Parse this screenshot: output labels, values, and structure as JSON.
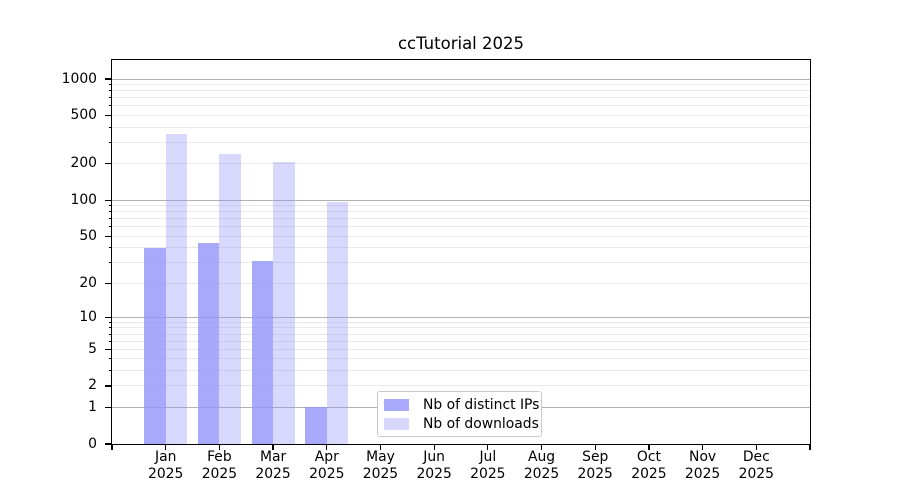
{
  "figure": {
    "title": "ccTutorial 2025"
  },
  "chart_data": {
    "type": "bar",
    "title": "ccTutorial 2025",
    "x_categories": [
      "Jan",
      "Feb",
      "Mar",
      "Apr",
      "May",
      "Jun",
      "Jul",
      "Aug",
      "Sep",
      "Oct",
      "Nov",
      "Dec"
    ],
    "x_year_label": "2025",
    "series": [
      {
        "name": "Nb of distinct IPs",
        "color": "#9696FA",
        "alpha": 0.82,
        "values": [
          40,
          44,
          31,
          1,
          0,
          0,
          0,
          0,
          0,
          0,
          0,
          0
        ]
      },
      {
        "name": "Nb of downloads",
        "color": "#9696FA",
        "alpha": 0.37,
        "values": [
          355,
          240,
          208,
          96,
          0,
          0,
          0,
          0,
          0,
          0,
          0,
          0
        ]
      }
    ],
    "yscale": "log1p",
    "ylim": [
      0,
      1434
    ],
    "y_labeled_ticks": [
      0,
      1,
      2,
      5,
      10,
      20,
      50,
      100,
      200,
      500,
      1000
    ],
    "y_major_gridlines": [
      1,
      10,
      100,
      1000
    ],
    "grid": true,
    "legend_position": "lower center",
    "colors": {
      "major_grid": "#b2b2b2",
      "minor_grid": "#e9e9e9",
      "axis": "#000000",
      "text": "#000000",
      "legend_border": "#c9c9c9",
      "background": "#ffffff"
    }
  }
}
